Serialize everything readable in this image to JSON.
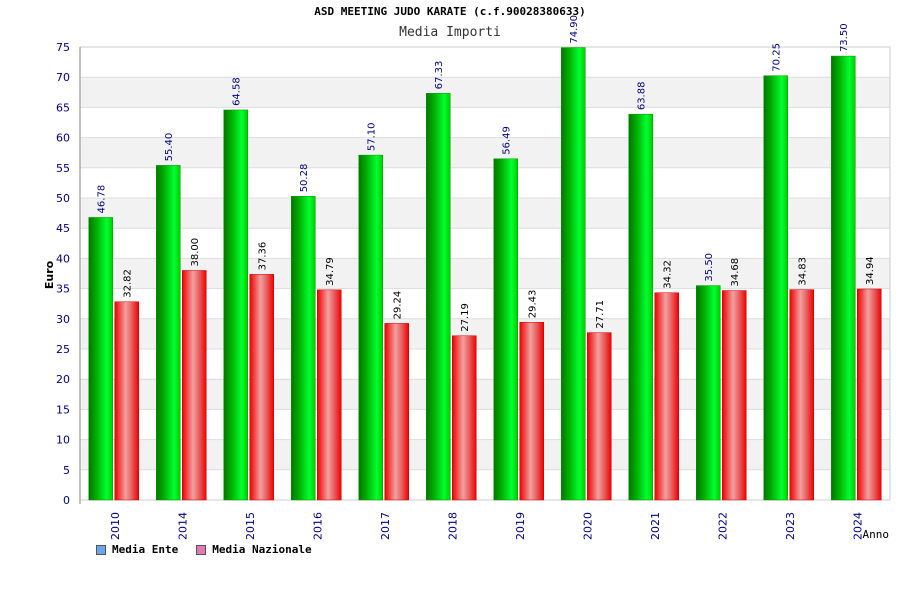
{
  "chart_data": {
    "type": "bar",
    "title": "ASD MEETING JUDO KARATE (c.f.90028380633)",
    "subtitle": "Media Importi",
    "ylabel": "Euro",
    "xlabel": "Anno",
    "ylim": [
      0,
      75
    ],
    "yticks": [
      0,
      5,
      10,
      15,
      20,
      25,
      30,
      35,
      40,
      45,
      50,
      55,
      60,
      65,
      70,
      75
    ],
    "grid": true,
    "legend_position": "bottom-left",
    "categories": [
      "2010",
      "2014",
      "2015",
      "2016",
      "2017",
      "2018",
      "2019",
      "2020",
      "2021",
      "2022",
      "2023",
      "2024"
    ],
    "series": [
      {
        "name": "Media Ente",
        "color": "#00cc00",
        "legend_color": "#6aa6e8",
        "values": [
          46.78,
          55.4,
          64.58,
          50.28,
          57.1,
          67.33,
          56.49,
          74.9,
          63.88,
          35.5,
          70.25,
          73.5
        ],
        "labels": [
          "46.78",
          "55.40",
          "64.58",
          "50.28",
          "57.10",
          "67.33",
          "56.49",
          "74.90",
          "63.88",
          "35.50",
          "70.25",
          "73.50"
        ]
      },
      {
        "name": "Media Nazionale",
        "color": "#ee1111",
        "legend_color": "#e07ab0",
        "values": [
          32.82,
          38.0,
          37.36,
          34.79,
          29.24,
          27.19,
          29.43,
          27.71,
          34.32,
          34.68,
          34.83,
          34.94
        ],
        "labels": [
          "32.82",
          "38.00",
          "37.36",
          "34.79",
          "29.24",
          "27.19",
          "29.43",
          "27.71",
          "34.32",
          "34.68",
          "34.83",
          "34.94"
        ]
      }
    ]
  }
}
